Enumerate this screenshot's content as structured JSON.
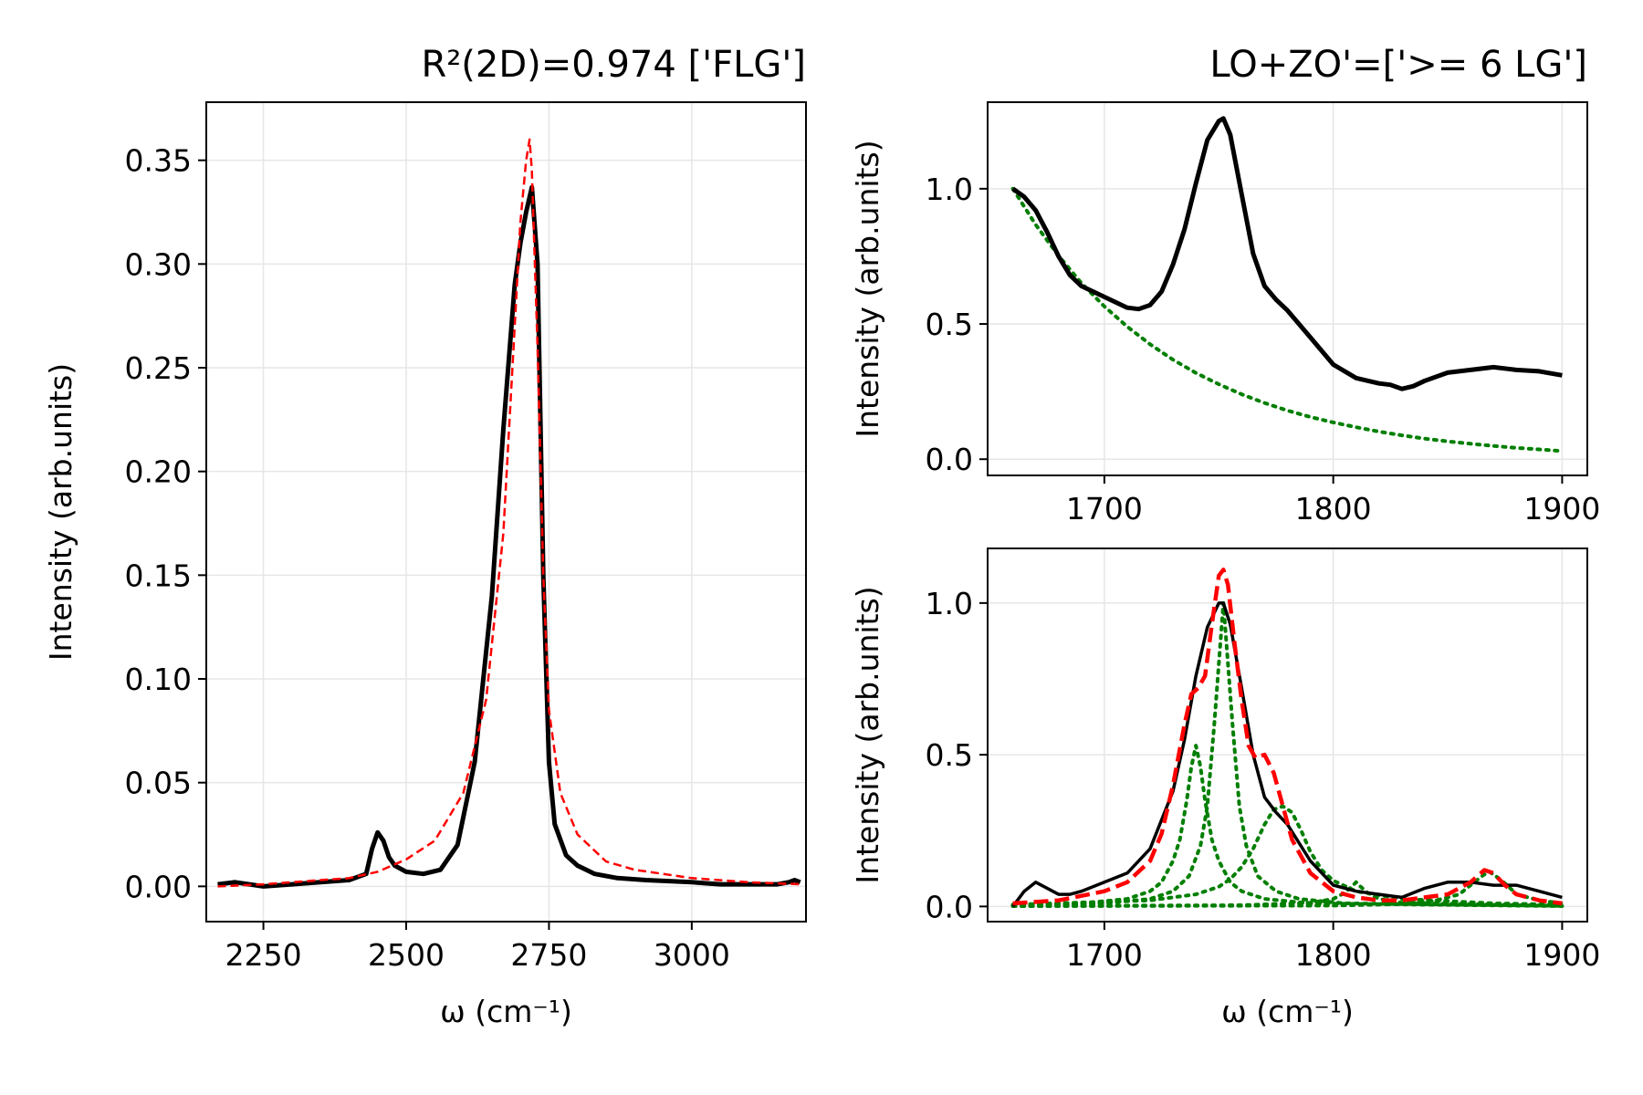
{
  "colors": {
    "data": "#000000",
    "fit": "#ff0000",
    "component": "#007f00",
    "grid": "#e6e6e6"
  },
  "chart_data": [
    {
      "id": "left",
      "type": "line",
      "title": "R²(2D)=0.974 ['FLG']",
      "xlabel": "ω (cm⁻¹)",
      "ylabel": "Intensity (arb.units)",
      "xlim": [
        2150,
        3200
      ],
      "ylim": [
        -0.017,
        0.378
      ],
      "xticks": [
        2250,
        2500,
        2750,
        3000
      ],
      "xtick_labels": [
        "2250",
        "2500",
        "2750",
        "3000"
      ],
      "yticks": [
        0.0,
        0.05,
        0.1,
        0.15,
        0.2,
        0.25,
        0.3,
        0.35
      ],
      "ytick_labels": [
        "0.00",
        "0.05",
        "0.10",
        "0.15",
        "0.20",
        "0.25",
        "0.30",
        "0.35"
      ],
      "grid": true,
      "series": [
        {
          "role": "data",
          "style": "solid-thick",
          "x": [
            2170,
            2200,
            2250,
            2300,
            2350,
            2400,
            2430,
            2440,
            2450,
            2460,
            2470,
            2480,
            2500,
            2530,
            2560,
            2590,
            2620,
            2650,
            2670,
            2690,
            2700,
            2710,
            2720,
            2730,
            2740,
            2750,
            2760,
            2780,
            2800,
            2830,
            2870,
            2920,
            3000,
            3050,
            3100,
            3150,
            3170,
            3180,
            3190
          ],
          "y": [
            0.001,
            0.002,
            0.0,
            0.001,
            0.002,
            0.003,
            0.006,
            0.018,
            0.026,
            0.022,
            0.014,
            0.01,
            0.007,
            0.006,
            0.008,
            0.02,
            0.06,
            0.14,
            0.22,
            0.29,
            0.31,
            0.325,
            0.337,
            0.3,
            0.15,
            0.06,
            0.03,
            0.015,
            0.01,
            0.006,
            0.004,
            0.003,
            0.002,
            0.001,
            0.001,
            0.001,
            0.002,
            0.003,
            0.002
          ]
        },
        {
          "role": "fit",
          "style": "dashed",
          "x": [
            2170,
            2250,
            2350,
            2400,
            2450,
            2500,
            2550,
            2600,
            2640,
            2670,
            2690,
            2700,
            2710,
            2716,
            2720,
            2730,
            2740,
            2750,
            2770,
            2800,
            2850,
            2900,
            3000,
            3100,
            3190
          ],
          "y": [
            0.0,
            0.001,
            0.003,
            0.004,
            0.007,
            0.013,
            0.022,
            0.045,
            0.09,
            0.17,
            0.27,
            0.32,
            0.35,
            0.36,
            0.345,
            0.26,
            0.15,
            0.085,
            0.045,
            0.025,
            0.012,
            0.008,
            0.004,
            0.002,
            0.001
          ]
        }
      ]
    },
    {
      "id": "top-right",
      "type": "line",
      "title": "LO+ZO'=['>= 6 LG']",
      "xlabel": "",
      "ylabel": "Intensity (arb.units)",
      "xlim": [
        1649,
        1911
      ],
      "ylim": [
        -0.06,
        1.32
      ],
      "xticks": [
        1700,
        1800,
        1900
      ],
      "xtick_labels": [
        "1700",
        "1800",
        "1900"
      ],
      "yticks": [
        0.0,
        0.5,
        1.0
      ],
      "ytick_labels": [
        "0.0",
        "0.5",
        "1.0"
      ],
      "grid": true,
      "series": [
        {
          "role": "data",
          "style": "solid-thick",
          "x": [
            1660,
            1665,
            1670,
            1675,
            1680,
            1685,
            1690,
            1700,
            1710,
            1715,
            1720,
            1725,
            1730,
            1735,
            1740,
            1745,
            1750,
            1752,
            1755,
            1760,
            1765,
            1770,
            1775,
            1780,
            1790,
            1800,
            1810,
            1820,
            1825,
            1830,
            1835,
            1840,
            1850,
            1860,
            1870,
            1880,
            1890,
            1900
          ],
          "y": [
            1.0,
            0.97,
            0.92,
            0.84,
            0.75,
            0.68,
            0.64,
            0.6,
            0.56,
            0.555,
            0.57,
            0.62,
            0.72,
            0.85,
            1.02,
            1.18,
            1.25,
            1.26,
            1.2,
            0.98,
            0.76,
            0.64,
            0.59,
            0.55,
            0.45,
            0.35,
            0.3,
            0.28,
            0.275,
            0.26,
            0.27,
            0.29,
            0.32,
            0.33,
            0.34,
            0.33,
            0.325,
            0.31
          ]
        },
        {
          "role": "component",
          "style": "dotted",
          "x": [
            1660,
            1670,
            1680,
            1690,
            1700,
            1710,
            1720,
            1730,
            1740,
            1750,
            1760,
            1770,
            1780,
            1790,
            1800,
            1810,
            1820,
            1830,
            1840,
            1850,
            1860,
            1870,
            1880,
            1890,
            1900
          ],
          "y": [
            1.0,
            0.867,
            0.752,
            0.651,
            0.565,
            0.49,
            0.425,
            0.368,
            0.319,
            0.277,
            0.24,
            0.208,
            0.18,
            0.156,
            0.136,
            0.118,
            0.102,
            0.088,
            0.076,
            0.066,
            0.057,
            0.049,
            0.042,
            0.036,
            0.03
          ]
        }
      ]
    },
    {
      "id": "bottom-right",
      "type": "line",
      "title": "",
      "xlabel": "ω (cm⁻¹)",
      "ylabel": "Intensity (arb.units)",
      "xlim": [
        1649,
        1911
      ],
      "ylim": [
        -0.05,
        1.18
      ],
      "xticks": [
        1700,
        1800,
        1900
      ],
      "xtick_labels": [
        "1700",
        "1800",
        "1900"
      ],
      "yticks": [
        0.0,
        0.5,
        1.0
      ],
      "ytick_labels": [
        "0.0",
        "0.5",
        "1.0"
      ],
      "grid": true,
      "series": [
        {
          "role": "data",
          "style": "solid",
          "x": [
            1660,
            1665,
            1670,
            1675,
            1680,
            1685,
            1690,
            1700,
            1710,
            1720,
            1730,
            1735,
            1740,
            1745,
            1750,
            1752,
            1755,
            1760,
            1765,
            1770,
            1775,
            1780,
            1790,
            1800,
            1810,
            1820,
            1830,
            1840,
            1850,
            1860,
            1870,
            1880,
            1890,
            1900
          ],
          "y": [
            0.0,
            0.05,
            0.08,
            0.06,
            0.04,
            0.04,
            0.05,
            0.08,
            0.11,
            0.19,
            0.38,
            0.55,
            0.76,
            0.92,
            1.0,
            1.0,
            0.93,
            0.72,
            0.5,
            0.36,
            0.31,
            0.27,
            0.15,
            0.07,
            0.05,
            0.04,
            0.03,
            0.06,
            0.08,
            0.08,
            0.07,
            0.07,
            0.05,
            0.03
          ]
        },
        {
          "role": "fit",
          "style": "dashed-thick",
          "x": [
            1660,
            1680,
            1700,
            1710,
            1720,
            1725,
            1730,
            1735,
            1738,
            1741,
            1744,
            1747,
            1750,
            1752,
            1754,
            1757,
            1760,
            1763,
            1766,
            1770,
            1774,
            1778,
            1782,
            1790,
            1800,
            1810,
            1820,
            1830,
            1840,
            1850,
            1860,
            1866,
            1870,
            1875,
            1880,
            1890,
            1900
          ],
          "y": [
            0.01,
            0.02,
            0.05,
            0.08,
            0.15,
            0.24,
            0.4,
            0.6,
            0.7,
            0.72,
            0.76,
            0.93,
            1.09,
            1.11,
            1.06,
            0.86,
            0.68,
            0.53,
            0.49,
            0.5,
            0.44,
            0.33,
            0.22,
            0.11,
            0.05,
            0.03,
            0.02,
            0.02,
            0.03,
            0.04,
            0.08,
            0.12,
            0.11,
            0.07,
            0.04,
            0.02,
            0.01
          ]
        },
        {
          "role": "component",
          "style": "dotted",
          "x": [
            1660,
            1690,
            1710,
            1720,
            1725,
            1730,
            1733,
            1736,
            1738,
            1740,
            1742,
            1744,
            1747,
            1750,
            1755,
            1760,
            1770,
            1790,
            1900
          ],
          "y": [
            0.003,
            0.01,
            0.025,
            0.05,
            0.08,
            0.15,
            0.22,
            0.35,
            0.46,
            0.53,
            0.46,
            0.35,
            0.22,
            0.15,
            0.08,
            0.05,
            0.025,
            0.01,
            0.001
          ]
        },
        {
          "role": "component",
          "style": "dotted",
          "x": [
            1660,
            1700,
            1720,
            1730,
            1737,
            1742,
            1745,
            1748,
            1750,
            1752,
            1754,
            1756,
            1759,
            1762,
            1767,
            1775,
            1785,
            1805,
            1900
          ],
          "y": [
            0.003,
            0.01,
            0.025,
            0.05,
            0.1,
            0.2,
            0.33,
            0.6,
            0.8,
            1.0,
            0.8,
            0.6,
            0.33,
            0.2,
            0.1,
            0.05,
            0.025,
            0.01,
            0.002
          ]
        },
        {
          "role": "component",
          "style": "dotted",
          "x": [
            1660,
            1720,
            1740,
            1750,
            1755,
            1760,
            1765,
            1770,
            1774,
            1778,
            1782,
            1786,
            1790,
            1795,
            1800,
            1810,
            1830,
            1870,
            1900
          ],
          "y": [
            0.006,
            0.02,
            0.04,
            0.065,
            0.09,
            0.13,
            0.19,
            0.27,
            0.32,
            0.33,
            0.31,
            0.25,
            0.18,
            0.12,
            0.085,
            0.05,
            0.025,
            0.01,
            0.006
          ]
        },
        {
          "role": "component",
          "style": "dotted",
          "x": [
            1660,
            1760,
            1790,
            1800,
            1805,
            1808,
            1810,
            1812,
            1815,
            1820,
            1830,
            1900
          ],
          "y": [
            0.001,
            0.004,
            0.012,
            0.025,
            0.045,
            0.065,
            0.08,
            0.065,
            0.045,
            0.025,
            0.012,
            0.002
          ]
        },
        {
          "role": "component",
          "style": "dotted",
          "x": [
            1660,
            1800,
            1830,
            1845,
            1855,
            1860,
            1865,
            1868,
            1871,
            1876,
            1880,
            1890,
            1900
          ],
          "y": [
            0.001,
            0.003,
            0.008,
            0.02,
            0.04,
            0.07,
            0.1,
            0.115,
            0.1,
            0.07,
            0.04,
            0.02,
            0.01
          ]
        }
      ]
    }
  ]
}
